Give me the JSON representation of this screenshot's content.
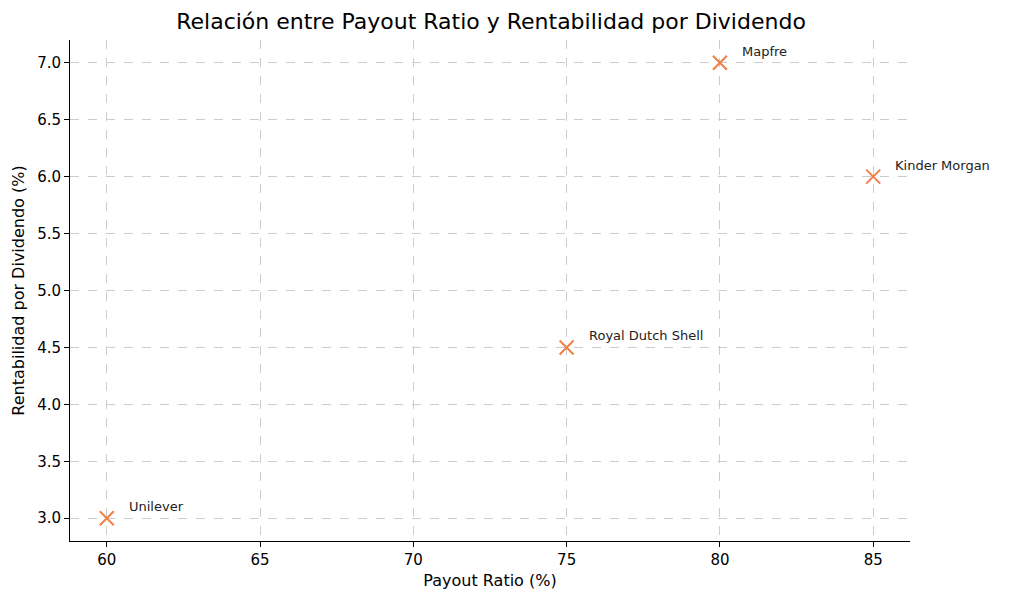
{
  "chart_data": {
    "type": "scatter",
    "title": "Relación entre Payout Ratio y Rentabilidad por Dividendo",
    "x_label": "Payout Ratio (%)",
    "y_label": "Rentabilidad por Dividendo (%)",
    "x": [
      60,
      75,
      80,
      85
    ],
    "values": [
      3.0,
      4.5,
      7.0,
      6.0
    ],
    "labels": [
      "Unilever",
      "Royal Dutch Shell",
      "Mapfre",
      "Kinder Morgan"
    ],
    "color": "#f07f45",
    "marker": "x",
    "xlim": [
      58.8,
      86.2
    ],
    "ylim": [
      2.8,
      7.2
    ],
    "xticks": [
      60,
      65,
      70,
      75,
      80,
      85
    ],
    "yticks": [
      {
        "value": 3,
        "label": "3.0"
      },
      3.5,
      {
        "value": 4,
        "label": "4.0"
      },
      4.5,
      {
        "value": 5,
        "label": "5.0"
      },
      5.5,
      {
        "value": 6,
        "label": "6.0"
      },
      6.5,
      {
        "value": 7,
        "label": "7.0"
      }
    ],
    "grid": true
  }
}
